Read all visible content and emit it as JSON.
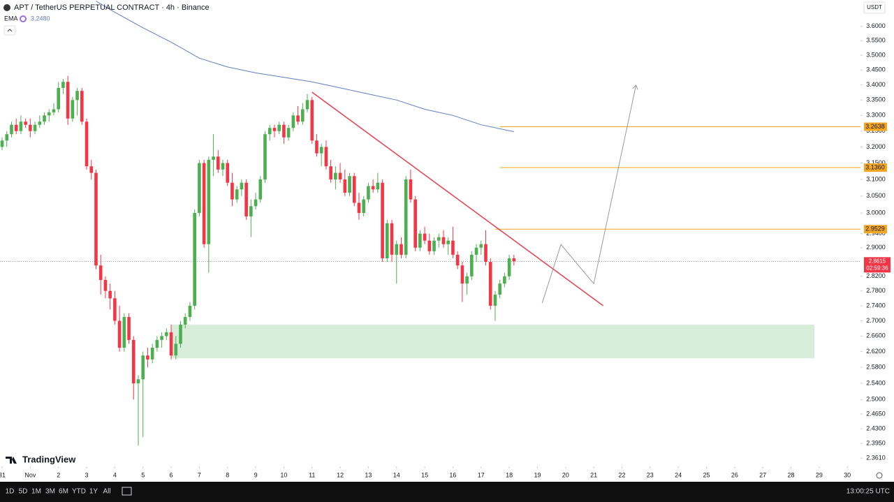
{
  "chart_data": {
    "type": "candlestick",
    "title": "APT / TetherUS PERPETUAL CONTRACT · 4h · Binance",
    "currency": "USDT",
    "brand": "TradingView",
    "log_scale": true,
    "grid": false,
    "up_color": "#4caf50",
    "down_color": "#f23645",
    "xlim": [
      -0.45,
      182.8
    ],
    "ylim": [
      2.342,
      3.694
    ],
    "xticks": [
      {
        "value": 0,
        "label": "31"
      },
      {
        "value": 6,
        "label": "Nov"
      },
      {
        "value": 12,
        "label": "2"
      },
      {
        "value": 18,
        "label": "3"
      },
      {
        "value": 24,
        "label": "4"
      },
      {
        "value": 30,
        "label": "5"
      },
      {
        "value": 36,
        "label": "6"
      },
      {
        "value": 42,
        "label": "7"
      },
      {
        "value": 48,
        "label": "8"
      },
      {
        "value": 54,
        "label": "9"
      },
      {
        "value": 60,
        "label": "10"
      },
      {
        "value": 66,
        "label": "11"
      },
      {
        "value": 72,
        "label": "12"
      },
      {
        "value": 78,
        "label": "13"
      },
      {
        "value": 84,
        "label": "14"
      },
      {
        "value": 90,
        "label": "15"
      },
      {
        "value": 96,
        "label": "16"
      },
      {
        "value": 102,
        "label": "17"
      },
      {
        "value": 108,
        "label": "18"
      },
      {
        "value": 114,
        "label": "19"
      },
      {
        "value": 120,
        "label": "20"
      },
      {
        "value": 126,
        "label": "21"
      },
      {
        "value": 132,
        "label": "22"
      },
      {
        "value": 138,
        "label": "23"
      },
      {
        "value": 144,
        "label": "24"
      },
      {
        "value": 150,
        "label": "25"
      },
      {
        "value": 156,
        "label": "26"
      },
      {
        "value": 162,
        "label": "27"
      },
      {
        "value": 168,
        "label": "28"
      },
      {
        "value": 174,
        "label": "29"
      },
      {
        "value": 180,
        "label": "30"
      }
    ],
    "yticks": [
      {
        "value": 3.6,
        "label": "3.6000"
      },
      {
        "value": 3.55,
        "label": "3.5500"
      },
      {
        "value": 3.5,
        "label": "3.5000"
      },
      {
        "value": 3.45,
        "label": "3.4500"
      },
      {
        "value": 3.4,
        "label": "3.4000"
      },
      {
        "value": 3.35,
        "label": "3.3500"
      },
      {
        "value": 3.3,
        "label": "3.3000"
      },
      {
        "value": 3.25,
        "label": "3.2500"
      },
      {
        "value": 3.2,
        "label": "3.2000"
      },
      {
        "value": 3.15,
        "label": "3.1500"
      },
      {
        "value": 3.1,
        "label": "3.1000"
      },
      {
        "value": 3.05,
        "label": "3.0500"
      },
      {
        "value": 3.0,
        "label": "3.0000"
      },
      {
        "value": 2.94,
        "label": "2.9400"
      },
      {
        "value": 2.9,
        "label": "2.9000"
      },
      {
        "value": 2.82,
        "label": "2.8200"
      },
      {
        "value": 2.78,
        "label": "2.7800"
      },
      {
        "value": 2.74,
        "label": "2.7400"
      },
      {
        "value": 2.7,
        "label": "2.7000"
      },
      {
        "value": 2.66,
        "label": "2.6600"
      },
      {
        "value": 2.62,
        "label": "2.6200"
      },
      {
        "value": 2.58,
        "label": "2.5800"
      },
      {
        "value": 2.54,
        "label": "2.5400"
      },
      {
        "value": 2.5,
        "label": "2.5000"
      },
      {
        "value": 2.465,
        "label": "2.4650"
      },
      {
        "value": 2.43,
        "label": "2.4300"
      },
      {
        "value": 2.395,
        "label": "2.3950"
      },
      {
        "value": 2.361,
        "label": "2.3610"
      }
    ],
    "x": [
      0,
      1,
      2,
      3,
      4,
      5,
      6,
      7,
      8,
      9,
      10,
      11,
      12,
      13,
      14,
      15,
      16,
      17,
      18,
      19,
      20,
      21,
      22,
      23,
      24,
      25,
      26,
      27,
      28,
      29,
      30,
      31,
      32,
      33,
      34,
      35,
      36,
      37,
      38,
      39,
      40,
      41,
      42,
      43,
      44,
      45,
      46,
      47,
      48,
      49,
      50,
      51,
      52,
      53,
      54,
      55,
      56,
      57,
      58,
      59,
      60,
      61,
      62,
      63,
      64,
      65,
      66,
      67,
      68,
      69,
      70,
      71,
      72,
      73,
      74,
      75,
      76,
      77,
      78,
      79,
      80,
      81,
      82,
      83,
      84,
      85,
      86,
      87,
      88,
      89,
      90,
      91,
      92,
      93,
      94,
      95,
      96,
      97,
      98,
      99,
      100,
      101,
      102,
      103,
      104,
      105,
      106,
      107,
      108,
      109
    ],
    "open": [
      3.2,
      3.22,
      3.24,
      3.27,
      3.25,
      3.28,
      3.27,
      3.25,
      3.27,
      3.28,
      3.3,
      3.31,
      3.32,
      3.39,
      3.41,
      3.29,
      3.35,
      3.38,
      3.28,
      3.14,
      3.12,
      2.85,
      2.81,
      2.78,
      2.76,
      2.7,
      2.63,
      2.71,
      2.65,
      2.54,
      2.55,
      2.61,
      2.6,
      2.63,
      2.65,
      2.66,
      2.67,
      2.61,
      2.64,
      2.69,
      2.71,
      2.74,
      3.0,
      3.15,
      2.91,
      3.16,
      3.17,
      3.13,
      3.15,
      3.09,
      3.04,
      3.07,
      3.09,
      2.99,
      3.02,
      3.04,
      3.1,
      3.24,
      3.26,
      3.25,
      3.27,
      3.23,
      3.26,
      3.3,
      3.28,
      3.32,
      3.35,
      3.22,
      3.18,
      3.2,
      3.14,
      3.1,
      3.12,
      3.1,
      3.06,
      3.11,
      3.03,
      3.0,
      3.04,
      3.08,
      3.07,
      3.09,
      2.87,
      2.97,
      2.88,
      2.91,
      2.88,
      3.1,
      3.04,
      2.9,
      2.94,
      2.92,
      2.89,
      2.92,
      2.93,
      2.91,
      2.92,
      2.88,
      2.85,
      2.8,
      2.82,
      2.88,
      2.9,
      2.91,
      2.86,
      2.74,
      2.77,
      2.8,
      2.82,
      2.87
    ],
    "high": [
      3.23,
      3.25,
      3.28,
      3.29,
      3.3,
      3.29,
      3.29,
      3.28,
      3.3,
      3.31,
      3.32,
      3.34,
      3.41,
      3.42,
      3.43,
      3.36,
      3.39,
      3.39,
      3.29,
      3.16,
      3.13,
      2.88,
      2.82,
      2.8,
      2.78,
      2.74,
      2.72,
      2.72,
      2.66,
      2.56,
      2.62,
      2.63,
      2.64,
      2.66,
      2.67,
      2.68,
      2.69,
      2.66,
      2.7,
      2.72,
      2.75,
      3.01,
      3.16,
      3.16,
      3.17,
      3.24,
      3.19,
      3.16,
      3.16,
      3.12,
      3.08,
      3.1,
      3.1,
      3.04,
      3.06,
      3.11,
      3.25,
      3.27,
      3.27,
      3.28,
      3.28,
      3.27,
      3.31,
      3.33,
      3.34,
      3.37,
      3.36,
      3.24,
      3.21,
      3.22,
      3.16,
      3.14,
      3.15,
      3.13,
      3.12,
      3.12,
      3.06,
      3.05,
      3.09,
      3.1,
      3.12,
      3.1,
      2.98,
      2.98,
      2.92,
      2.93,
      3.11,
      3.13,
      3.05,
      2.95,
      2.96,
      2.94,
      2.93,
      2.94,
      2.95,
      2.93,
      2.96,
      2.89,
      2.86,
      2.83,
      2.89,
      2.91,
      2.92,
      2.95,
      2.87,
      2.78,
      2.81,
      2.83,
      2.88,
      2.88
    ],
    "low": [
      3.19,
      3.2,
      3.23,
      3.24,
      3.24,
      3.26,
      3.23,
      3.24,
      3.26,
      3.27,
      3.28,
      3.3,
      3.31,
      3.37,
      3.27,
      3.28,
      3.3,
      3.27,
      3.13,
      3.1,
      2.84,
      2.77,
      2.76,
      2.73,
      2.69,
      2.62,
      2.62,
      2.64,
      2.5,
      2.39,
      2.41,
      2.58,
      2.59,
      2.62,
      2.63,
      2.65,
      2.6,
      2.6,
      2.63,
      2.68,
      2.7,
      2.73,
      2.99,
      2.9,
      2.83,
      3.11,
      3.12,
      3.11,
      3.08,
      3.02,
      3.03,
      3.05,
      2.98,
      2.93,
      3.01,
      3.03,
      3.09,
      3.22,
      3.23,
      3.24,
      3.21,
      3.22,
      3.25,
      3.27,
      3.27,
      3.31,
      3.21,
      3.17,
      3.14,
      3.13,
      3.09,
      3.07,
      3.09,
      3.05,
      3.05,
      3.02,
      2.98,
      2.99,
      3.03,
      3.06,
      3.06,
      2.86,
      2.86,
      2.86,
      2.8,
      2.87,
      2.87,
      3.03,
      2.89,
      2.89,
      2.91,
      2.88,
      2.88,
      2.9,
      2.9,
      2.88,
      2.87,
      2.84,
      2.75,
      2.77,
      2.81,
      2.86,
      2.88,
      2.85,
      2.73,
      2.7,
      2.76,
      2.79,
      2.81,
      2.85
    ],
    "close": [
      3.22,
      3.24,
      3.27,
      3.25,
      3.28,
      3.27,
      3.25,
      3.27,
      3.28,
      3.3,
      3.31,
      3.32,
      3.39,
      3.41,
      3.29,
      3.35,
      3.38,
      3.28,
      3.14,
      3.12,
      2.85,
      2.81,
      2.78,
      2.76,
      2.7,
      2.63,
      2.71,
      2.65,
      2.54,
      2.55,
      2.61,
      2.6,
      2.63,
      2.65,
      2.66,
      2.67,
      2.61,
      2.64,
      2.69,
      2.71,
      2.74,
      3.0,
      3.15,
      2.91,
      3.16,
      3.17,
      3.13,
      3.15,
      3.09,
      3.04,
      3.07,
      3.09,
      2.99,
      3.02,
      3.04,
      3.1,
      3.24,
      3.26,
      3.25,
      3.27,
      3.23,
      3.26,
      3.3,
      3.28,
      3.32,
      3.35,
      3.22,
      3.18,
      3.2,
      3.14,
      3.1,
      3.12,
      3.1,
      3.06,
      3.11,
      3.03,
      3.0,
      3.04,
      3.08,
      3.07,
      3.09,
      2.87,
      2.97,
      2.88,
      2.91,
      2.88,
      3.1,
      3.04,
      2.9,
      2.94,
      2.92,
      2.89,
      2.92,
      2.93,
      2.91,
      2.92,
      2.88,
      2.85,
      2.8,
      2.82,
      2.88,
      2.9,
      2.91,
      2.86,
      2.74,
      2.77,
      2.8,
      2.82,
      2.87,
      2.8615
    ],
    "ema": {
      "name": "EMA",
      "label": "3.2480",
      "color": "#5b7fc4",
      "x": [
        20,
        24,
        30,
        36,
        42,
        48,
        54,
        60,
        66,
        72,
        78,
        84,
        90,
        96,
        102,
        109
      ],
      "values": [
        3.69,
        3.65,
        3.595,
        3.545,
        3.49,
        3.46,
        3.44,
        3.425,
        3.41,
        3.39,
        3.37,
        3.35,
        3.32,
        3.3,
        3.27,
        3.248
      ]
    },
    "levels": [
      {
        "value": 3.2638,
        "label": "3.2638",
        "from": 106
      },
      {
        "value": 3.136,
        "label": "3.1360",
        "from": 106
      },
      {
        "value": 2.9529,
        "label": "2.9529",
        "from": 105
      }
    ],
    "level_color": "#f5a623",
    "last_price": {
      "value": 2.8615,
      "label": "2.8615",
      "countdown": "02:59:36"
    },
    "trendline": {
      "color": "#e5404f",
      "x": [
        66,
        128
      ],
      "values": [
        3.376,
        2.74
      ]
    },
    "projection": {
      "color": "#999999",
      "x": [
        115,
        119,
        126,
        135
      ],
      "values": [
        2.747,
        2.909,
        2.8,
        3.399
      ]
    },
    "zone": {
      "x": [
        36,
        173
      ],
      "low": 2.603,
      "high": 2.69,
      "color": "rgba(76,175,80,0.22)"
    }
  },
  "toolbar": {
    "ranges": [
      "1D",
      "5D",
      "1M",
      "3M",
      "6M",
      "YTD",
      "1Y",
      "All"
    ],
    "time": "13:00:25 UTC"
  }
}
